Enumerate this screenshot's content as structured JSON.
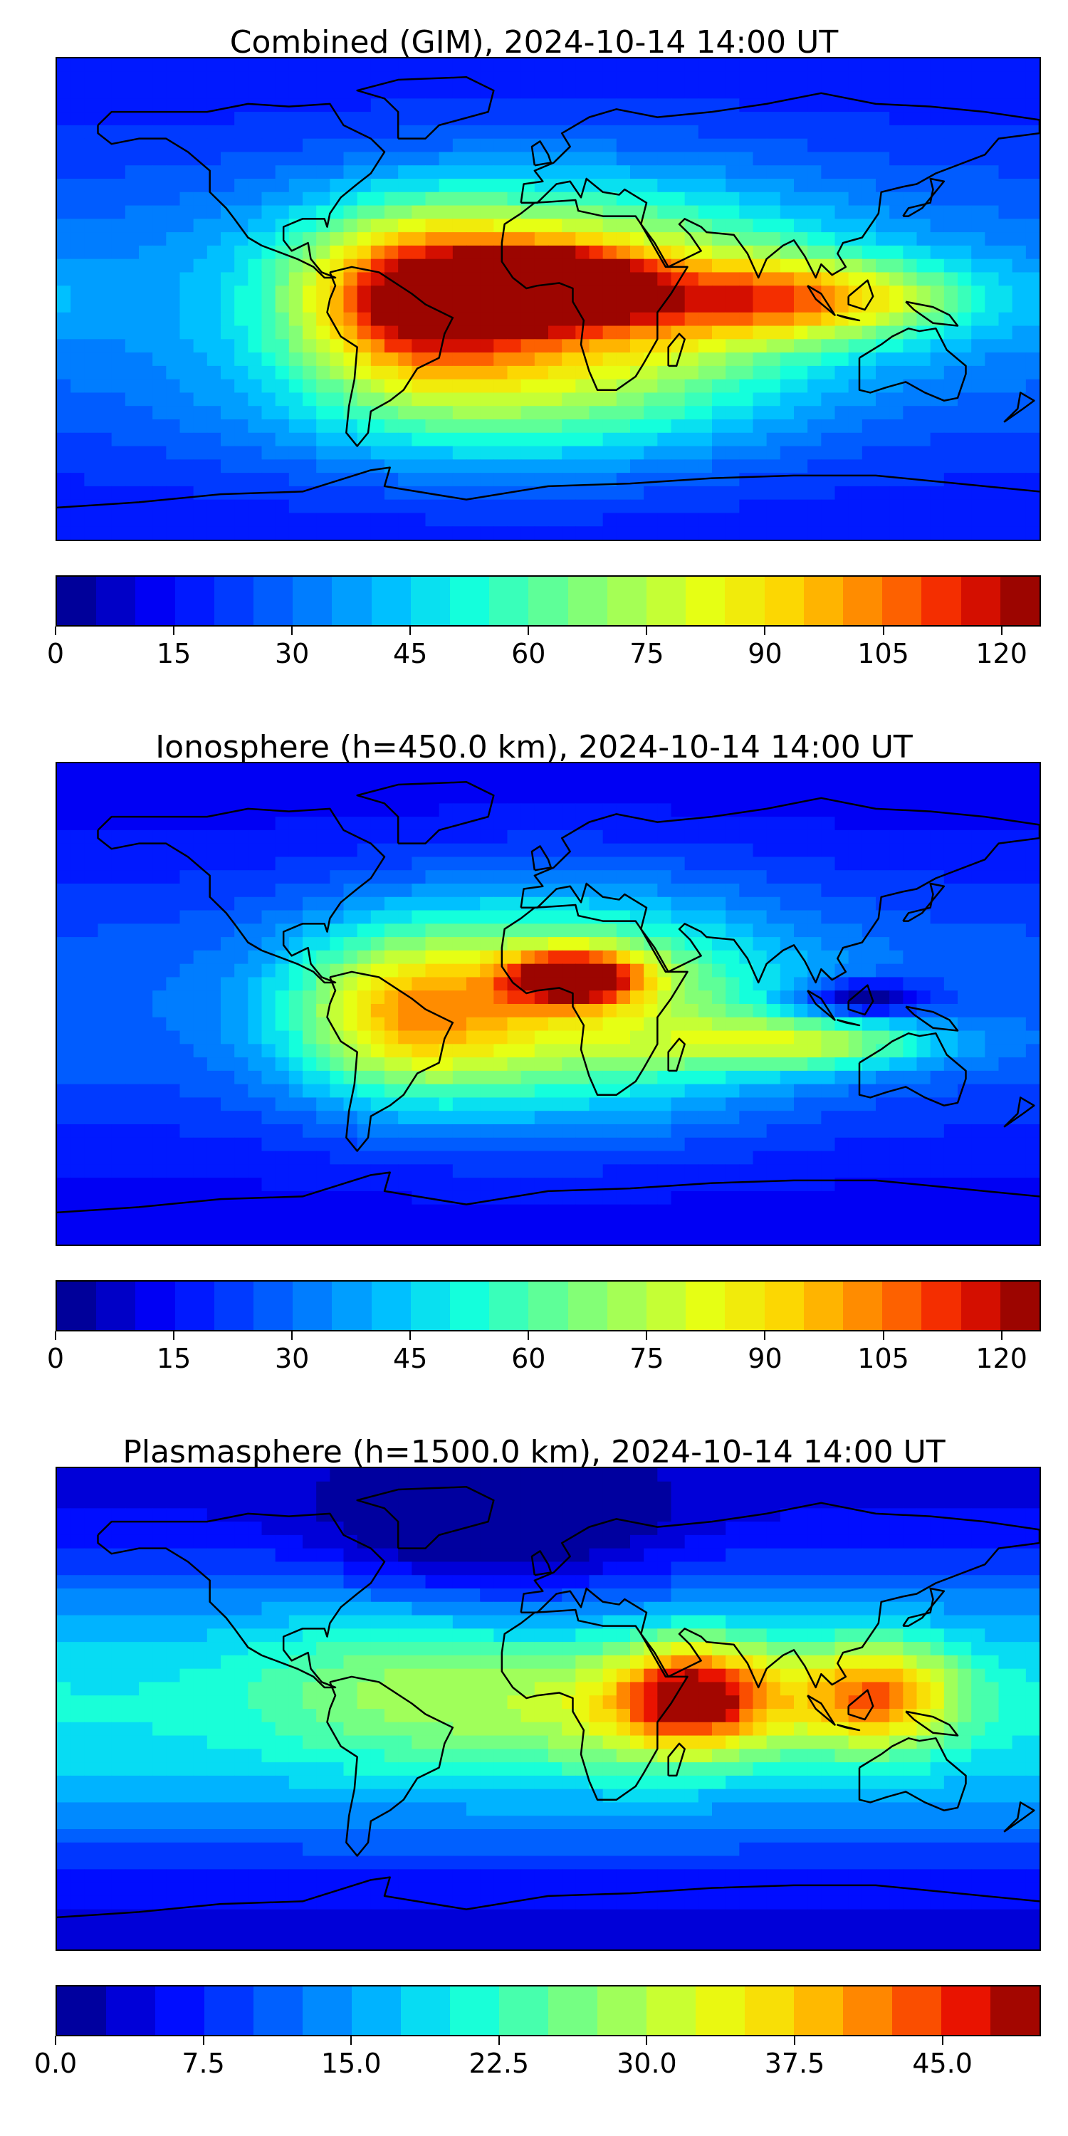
{
  "panels": [
    {
      "title": "Combined (GIM), 2024-10-14 14:00 UT",
      "colorbar": {
        "vmin": 0,
        "vmax": 125,
        "step": 5,
        "tick_labels": [
          "0",
          "15",
          "30",
          "45",
          "60",
          "75",
          "90",
          "105",
          "120"
        ],
        "tick_values": [
          0,
          15,
          30,
          45,
          60,
          75,
          90,
          105,
          120
        ]
      },
      "blobs": [
        {
          "lon": 5,
          "lat": 0,
          "value": 95,
          "rlon": 90,
          "rlat": 40
        },
        {
          "lon": 0,
          "lat": 5,
          "value": 108,
          "rlon": 30,
          "rlat": 12
        },
        {
          "lon": -50,
          "lat": 0,
          "value": 80,
          "rlon": 40,
          "rlat": 30
        },
        {
          "lon": 95,
          "lat": 0,
          "value": 75,
          "rlon": 60,
          "rlat": 15
        },
        {
          "lon": -20,
          "lat": -45,
          "value": 45,
          "rlon": 90,
          "rlat": 25
        }
      ],
      "base_value": 25
    },
    {
      "title": "Ionosphere  (h=450.0 km), 2024-10-14 14:00 UT",
      "colorbar": {
        "vmin": 0,
        "vmax": 125,
        "step": 5,
        "tick_labels": [
          "0",
          "15",
          "30",
          "45",
          "60",
          "75",
          "90",
          "105",
          "120"
        ],
        "tick_values": [
          0,
          15,
          30,
          45,
          60,
          75,
          90,
          105,
          120
        ]
      },
      "blobs": [
        {
          "lon": 5,
          "lat": 0,
          "value": 75,
          "rlon": 80,
          "rlat": 40
        },
        {
          "lon": 10,
          "lat": 10,
          "value": 88,
          "rlon": 25,
          "rlat": 10
        },
        {
          "lon": -55,
          "lat": -5,
          "value": 62,
          "rlon": 40,
          "rlat": 30
        },
        {
          "lon": 95,
          "lat": -15,
          "value": 60,
          "rlon": 50,
          "rlat": 10
        },
        {
          "lon": 115,
          "lat": 2,
          "value": -15,
          "rlon": 25,
          "rlat": 7
        }
      ],
      "base_value": 20
    },
    {
      "title": "Plasmasphere (h=1500.0 km), 2024-10-14 14:00 UT",
      "colorbar": {
        "vmin": 0,
        "vmax": 50,
        "step": 2.5,
        "tick_labels": [
          "0.0",
          "7.5",
          "15.0",
          "22.5",
          "30.0",
          "37.5",
          "45.0"
        ],
        "tick_values": [
          0,
          7.5,
          15,
          22.5,
          30,
          37.5,
          45
        ]
      },
      "blobs": [
        {
          "lon": 55,
          "lat": 5,
          "value": 38,
          "rlon": 30,
          "rlat": 20
        },
        {
          "lon": 120,
          "lat": 5,
          "value": 35,
          "rlon": 30,
          "rlat": 20
        },
        {
          "lon": 20,
          "lat": 0,
          "value": 22,
          "rlon": 60,
          "rlat": 25
        },
        {
          "lon": -60,
          "lat": 10,
          "value": 19,
          "rlon": 50,
          "rlat": 30
        },
        {
          "lon": -20,
          "lat": 65,
          "value": 2,
          "rlon": 60,
          "rlat": 25
        }
      ],
      "base_value": 12
    }
  ],
  "map": {
    "lon_range": [
      -180,
      180
    ],
    "lat_range": [
      -90,
      90
    ]
  }
}
